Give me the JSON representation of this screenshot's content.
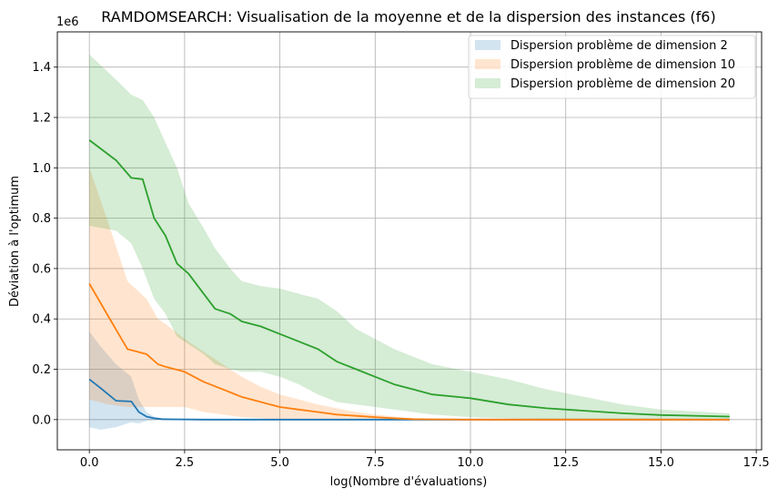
{
  "chart_data": {
    "type": "line",
    "title": "RAMDOMSEARCH: Visualisation de la moyenne et de la dispersion des instances (f6)",
    "xlabel": "log(Nombre d'évaluations)",
    "ylabel": "Déviation à l'optimum",
    "y_offset_label": "1e6",
    "xlim": [
      -0.84,
      17.64
    ],
    "ylim": [
      -0.12,
      1.54
    ],
    "xticks": [
      0.0,
      2.5,
      5.0,
      7.5,
      10.0,
      12.5,
      15.0,
      17.5
    ],
    "xtick_labels": [
      "0.0",
      "2.5",
      "5.0",
      "7.5",
      "10.0",
      "12.5",
      "15.0",
      "17.5"
    ],
    "yticks": [
      0.0,
      0.2,
      0.4,
      0.6,
      0.8,
      1.0,
      1.2,
      1.4
    ],
    "ytick_labels": [
      "0.0",
      "0.2",
      "0.4",
      "0.6",
      "0.8",
      "1.0",
      "1.2",
      "1.4"
    ],
    "grid": true,
    "legend_position": "top-right",
    "series": [
      {
        "name": "Dispersion problème de dimension 2",
        "color": "#1f77b4",
        "x": [
          0,
          0.3,
          0.7,
          1.1,
          1.3,
          1.5,
          1.7,
          1.9,
          2.2,
          3,
          5,
          8,
          12,
          16.8
        ],
        "mean": [
          0.16,
          0.125,
          0.075,
          0.072,
          0.03,
          0.012,
          0.005,
          0.002,
          0.001,
          0.0,
          0.0,
          0.0,
          0.0,
          0.0
        ],
        "upper": [
          0.35,
          0.29,
          0.22,
          0.17,
          0.08,
          0.03,
          0.012,
          0.006,
          0.004,
          0.002,
          0.001,
          0.0,
          0.0,
          0.0
        ],
        "lower": [
          -0.03,
          -0.04,
          -0.03,
          -0.01,
          -0.015,
          -0.005,
          -0.002,
          0.0,
          0.0,
          0.0,
          0.0,
          0.0,
          0.0,
          0.0
        ]
      },
      {
        "name": "Dispersion problème de dimension 10",
        "color": "#ff7f0e",
        "x": [
          0,
          0.5,
          1.0,
          1.5,
          1.8,
          2.0,
          2.5,
          3.0,
          3.5,
          4.0,
          4.5,
          5.0,
          5.5,
          6.0,
          6.5,
          7.0,
          7.5,
          8.0,
          8.5,
          9.0,
          10,
          12,
          14,
          16.8
        ],
        "mean": [
          0.54,
          0.41,
          0.28,
          0.26,
          0.22,
          0.21,
          0.19,
          0.15,
          0.12,
          0.09,
          0.07,
          0.05,
          0.04,
          0.03,
          0.02,
          0.015,
          0.01,
          0.005,
          0.002,
          0.001,
          0.0,
          0.0,
          0.0,
          0.0
        ],
        "upper": [
          1.0,
          0.78,
          0.55,
          0.48,
          0.4,
          0.38,
          0.32,
          0.27,
          0.22,
          0.17,
          0.13,
          0.1,
          0.08,
          0.06,
          0.045,
          0.03,
          0.02,
          0.012,
          0.006,
          0.003,
          0.001,
          0.0,
          0.0,
          0.0
        ],
        "lower": [
          0.08,
          0.06,
          0.05,
          0.05,
          0.05,
          0.05,
          0.05,
          0.03,
          0.02,
          0.01,
          0.005,
          0.0,
          0.0,
          0.0,
          0.0,
          0.0,
          0.0,
          0.0,
          0.0,
          0.0,
          0.0,
          0.0,
          0.0,
          0.0
        ]
      },
      {
        "name": "Dispersion problème de dimension 20",
        "color": "#2ca02c",
        "x": [
          0,
          0.7,
          1.1,
          1.4,
          1.7,
          2.0,
          2.3,
          2.6,
          3.0,
          3.3,
          3.7,
          4.0,
          4.5,
          5.0,
          5.5,
          6.0,
          6.5,
          7.0,
          7.5,
          8.0,
          8.5,
          9.0,
          10,
          11,
          12,
          13,
          14,
          15,
          16.8
        ],
        "mean": [
          1.11,
          1.03,
          0.96,
          0.955,
          0.8,
          0.73,
          0.62,
          0.58,
          0.5,
          0.44,
          0.42,
          0.39,
          0.37,
          0.34,
          0.31,
          0.28,
          0.23,
          0.2,
          0.17,
          0.14,
          0.12,
          0.1,
          0.085,
          0.06,
          0.045,
          0.035,
          0.025,
          0.018,
          0.012
        ],
        "upper": [
          1.45,
          1.35,
          1.29,
          1.27,
          1.2,
          1.1,
          1.0,
          0.86,
          0.76,
          0.68,
          0.6,
          0.55,
          0.53,
          0.52,
          0.5,
          0.48,
          0.43,
          0.36,
          0.32,
          0.28,
          0.25,
          0.22,
          0.19,
          0.16,
          0.12,
          0.09,
          0.06,
          0.04,
          0.025
        ],
        "lower": [
          0.77,
          0.75,
          0.7,
          0.6,
          0.48,
          0.42,
          0.33,
          0.3,
          0.26,
          0.22,
          0.2,
          0.19,
          0.19,
          0.17,
          0.14,
          0.1,
          0.07,
          0.06,
          0.05,
          0.04,
          0.03,
          0.02,
          0.01,
          0.005,
          0.002,
          0.0,
          0.0,
          0.0,
          0.0
        ]
      }
    ]
  }
}
